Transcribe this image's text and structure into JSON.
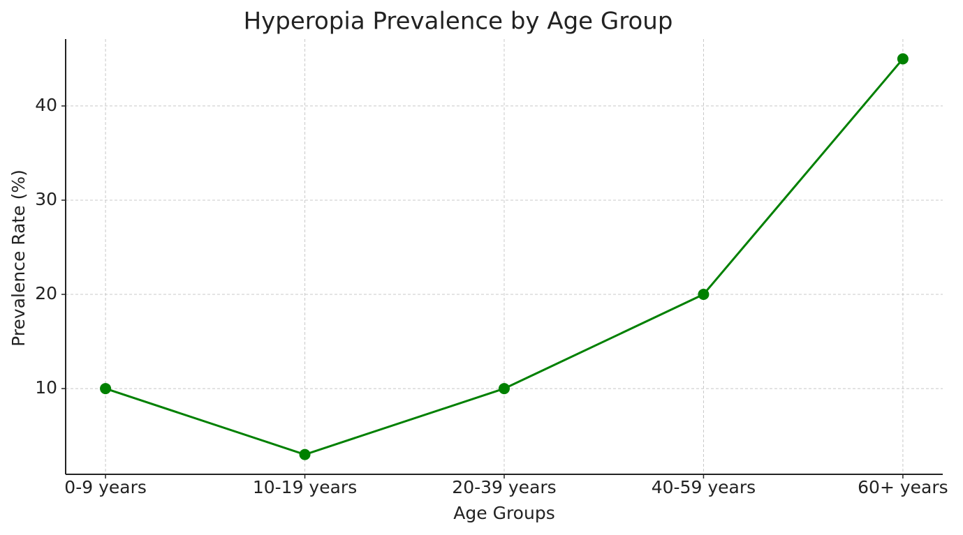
{
  "chart_data": {
    "type": "line",
    "title": "Hyperopia Prevalence by Age Group",
    "x_label": "Age Groups",
    "y_label": "Prevalence Rate (%)",
    "categories": [
      "0-9 years",
      "10-19 years",
      "20-39 years",
      "40-59 years",
      "60+ years"
    ],
    "values": [
      10,
      3,
      10,
      20,
      45
    ],
    "color": "#008000",
    "ylim": [
      0.9,
      47.1
    ],
    "yticks": [
      10,
      20,
      30,
      40
    ],
    "grid": true
  }
}
